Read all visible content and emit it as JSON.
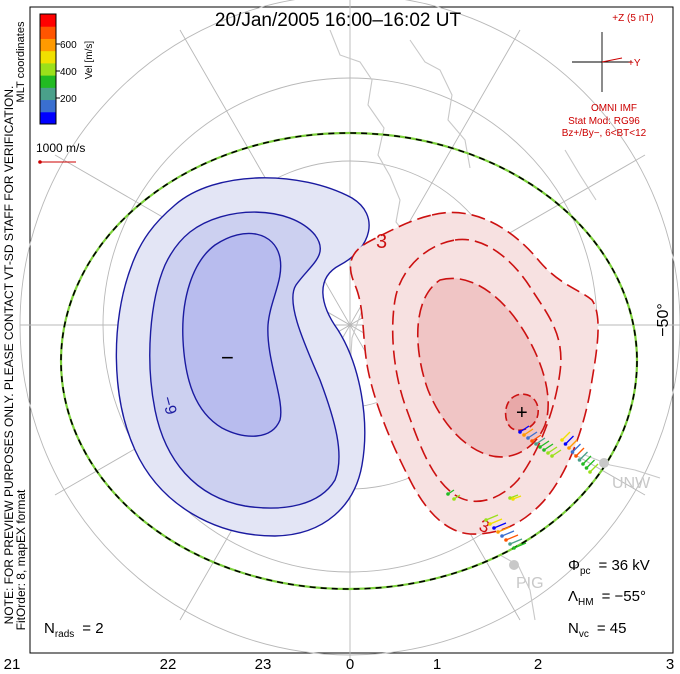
{
  "title": "20/Jan/2005 16:00–16:02 UT",
  "colorbar": {
    "label": "Vel [m/s]",
    "coord_label": "MLT coordinates",
    "ticks": [
      "600",
      "400",
      "200"
    ],
    "colors": [
      "#0000ff",
      "#3a6fd0",
      "#4aa08a",
      "#22bb22",
      "#9be01a",
      "#f0e000",
      "#ff9a00",
      "#ff5500",
      "#ff0000"
    ]
  },
  "ref_vector": {
    "label": "1000 m/s",
    "color": "#cc0000"
  },
  "imf": {
    "z_label": "+Z (5 nT)",
    "y_label": "+Y",
    "source": "OMNI IMF",
    "model": "Stat Mod: RG96",
    "conditions": "Bz+/By−, 6<BT<12",
    "color": "#cc0000"
  },
  "note": {
    "line1": "NOTE: FOR PREVIEW PURPOSES ONLY. PLEASE CONTACT VT-SD STAFF FOR VERIFICATION.",
    "line2": "FitOrder: 8, mapEX format"
  },
  "stats": {
    "phi_sym": "Φ",
    "phi_sub": "pc",
    "phi_val": "= 36 kV",
    "lambda_sym": "Λ",
    "lambda_sub": "HM",
    "lambda_val": "= −55°",
    "nvc_sym": "N",
    "nvc_sub": "vc",
    "nvc_val": "= 45",
    "nrads_sym": "N",
    "nrads_sub": "rads",
    "nrads_val": "= 2"
  },
  "mlt_ticks": [
    "21",
    "22",
    "23",
    "0",
    "1",
    "2",
    "3"
  ],
  "lat_label": "−50°",
  "stations": [
    "UNW",
    "PIG"
  ],
  "contour_labels": {
    "neg": "−9",
    "pos_a": "3",
    "pos_b": "3"
  },
  "markers": {
    "min": "−",
    "max": "+"
  },
  "colors": {
    "neg_line": "#1a1aa0",
    "pos_line": "#cc1111",
    "neg_fill_outer": "#e3e5f5",
    "neg_fill_mid": "#ccd0f0",
    "neg_fill_inner": "#b8bcee",
    "pos_fill_outer": "#f7e1e1",
    "pos_fill_inner": "#f0c5c5",
    "grid": "#b8b8b8",
    "land": "#c8c8c8",
    "boundary_dash": "#000000",
    "boundary_green": "#7cd13a"
  }
}
